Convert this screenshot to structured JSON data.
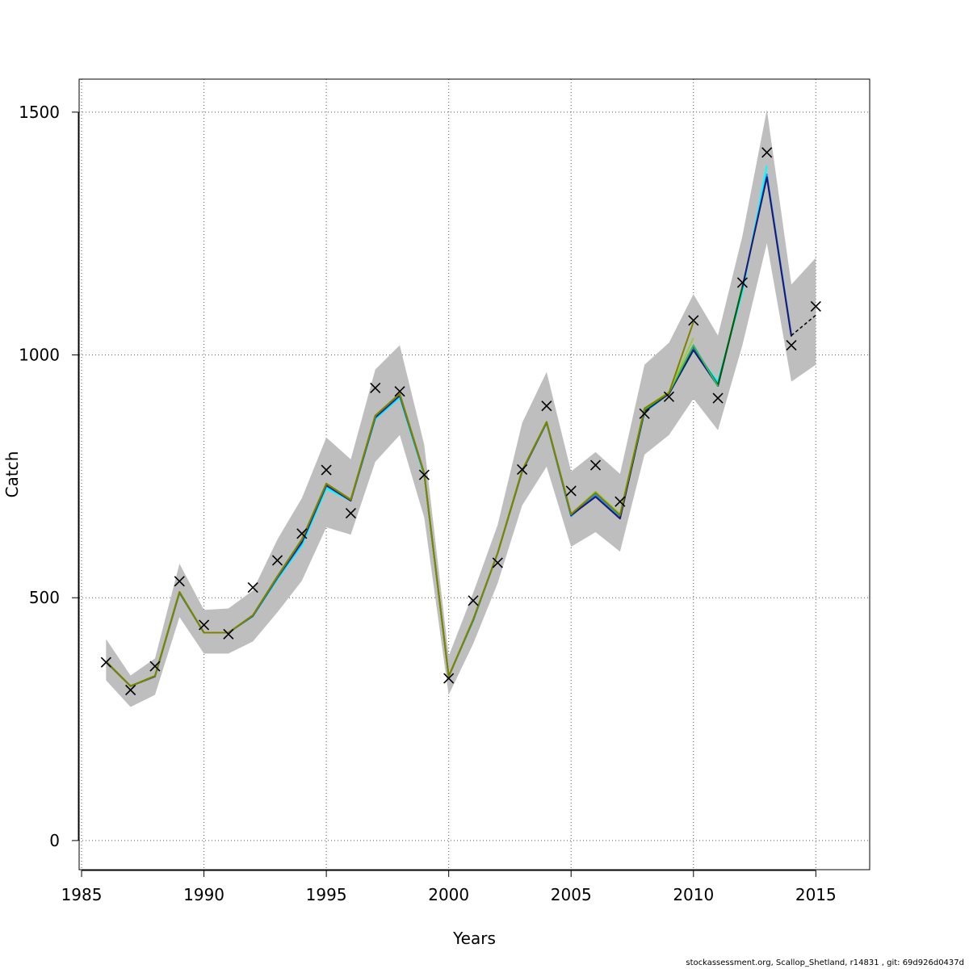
{
  "chart_data": {
    "type": "line",
    "xlabel": "Years",
    "ylabel": "Catch",
    "xlim": [
      1984.9,
      2017.2
    ],
    "ylim": [
      -60,
      1568
    ],
    "x_ticks": [
      1985,
      1990,
      1995,
      2000,
      2005,
      2010,
      2015
    ],
    "x_tick_labels": [
      "1985",
      "1990",
      "1995",
      "2000",
      "2005",
      "2010",
      "2015"
    ],
    "y_ticks": [
      0,
      500,
      1000,
      1500
    ],
    "y_tick_labels": [
      "0",
      "500",
      "1000",
      "1500"
    ],
    "grid": true,
    "colors": {
      "band": "#bebebe",
      "grid": "#555555",
      "observed_marker": "#000000"
    },
    "band": {
      "years": [
        1986,
        1987,
        1988,
        1989,
        1990,
        1991,
        1992,
        1993,
        1994,
        1995,
        1996,
        1997,
        1998,
        1999,
        2000,
        2001,
        2002,
        2003,
        2004,
        2005,
        2006,
        2007,
        2008,
        2009,
        2010,
        2011,
        2012,
        2013,
        2014,
        2015
      ],
      "lower": [
        330,
        275,
        300,
        460,
        385,
        385,
        410,
        470,
        535,
        645,
        630,
        780,
        835,
        665,
        300,
        405,
        530,
        690,
        770,
        605,
        635,
        595,
        795,
        835,
        910,
        845,
        1020,
        1230,
        945,
        980
      ],
      "upper": [
        415,
        340,
        375,
        570,
        475,
        478,
        515,
        620,
        705,
        830,
        785,
        970,
        1020,
        815,
        380,
        510,
        650,
        860,
        965,
        760,
        800,
        755,
        980,
        1025,
        1125,
        1040,
        1245,
        1505,
        1145,
        1200
      ]
    },
    "observed": {
      "marker": "x",
      "years": [
        1986,
        1987,
        1988,
        1989,
        1990,
        1991,
        1992,
        1993,
        1994,
        1995,
        1996,
        1997,
        1998,
        1999,
        2000,
        2001,
        2002,
        2003,
        2004,
        2005,
        2006,
        2007,
        2008,
        2009,
        2010,
        2011,
        2012,
        2013,
        2014,
        2015
      ],
      "values": [
        367,
        310,
        359,
        534,
        444,
        425,
        521,
        577,
        632,
        763,
        674,
        932,
        925,
        753,
        334,
        494,
        572,
        764,
        895,
        720,
        773,
        698,
        879,
        914,
        1071,
        911,
        1149,
        1417,
        1020,
        1100
      ]
    },
    "series": [
      {
        "color": "#00ffff",
        "years": [
          1986,
          1987,
          1988,
          1989,
          1990,
          1991,
          1992,
          1993,
          1994,
          1995,
          1996,
          1997,
          1998,
          1999,
          2000,
          2001,
          2002,
          2003,
          2004,
          2005,
          2006,
          2007,
          2008,
          2009,
          2010,
          2011,
          2012,
          2013
        ],
        "values": [
          368,
          318,
          338,
          510,
          428,
          428,
          462,
          538,
          608,
          725,
          700,
          868,
          912,
          752,
          338,
          452,
          592,
          760,
          860,
          668,
          714,
          666,
          882,
          920,
          1010,
          945,
          1130,
          1390
        ]
      },
      {
        "color": "#1e90ff",
        "years": [
          1986,
          1987,
          1988,
          1989,
          1990,
          1991,
          1992,
          1993,
          1994,
          1995,
          1996,
          1997,
          1998,
          1999,
          2000,
          2001,
          2002,
          2003,
          2004,
          2005,
          2006,
          2007,
          2008,
          2009,
          2010,
          2011,
          2012,
          2013,
          2014
        ],
        "values": [
          368,
          318,
          338,
          510,
          428,
          428,
          462,
          540,
          612,
          730,
          700,
          870,
          915,
          754,
          338,
          453,
          592,
          760,
          860,
          668,
          712,
          665,
          883,
          920,
          1012,
          940,
          1138,
          1372,
          1042
        ]
      },
      {
        "color": "#191970",
        "years": [
          1986,
          1987,
          1988,
          1989,
          1990,
          1991,
          1992,
          1993,
          1994,
          1995,
          1996,
          1997,
          1998,
          1999,
          2000,
          2001,
          2002,
          2003,
          2004,
          2005,
          2006,
          2007,
          2008,
          2009,
          2010,
          2011,
          2012,
          2013,
          2014
        ],
        "values": [
          368,
          318,
          338,
          511,
          428,
          428,
          463,
          542,
          615,
          732,
          700,
          872,
          917,
          755,
          338,
          454,
          592,
          760,
          861,
          670,
          708,
          663,
          884,
          920,
          1010,
          936,
          1140,
          1366,
          1038
        ]
      },
      {
        "color": "#000000",
        "dashed": true,
        "years": [
          2014,
          2015
        ],
        "values": [
          1040,
          1082
        ]
      },
      {
        "color": "#006400",
        "years": [
          1986,
          1987,
          1988,
          1989,
          1990,
          1991,
          1992,
          1993,
          1994,
          1995,
          1996,
          1997,
          1998,
          1999,
          2000,
          2001,
          2002,
          2003,
          2004,
          2005,
          2006,
          2007,
          2008,
          2009,
          2010,
          2011,
          2012
        ],
        "values": [
          369,
          318,
          339,
          512,
          428,
          428,
          464,
          544,
          620,
          735,
          702,
          875,
          920,
          756,
          338,
          455,
          592,
          762,
          862,
          672,
          718,
          670,
          886,
          922,
          1018,
          938,
          1140
        ]
      },
      {
        "color": "#3cb371",
        "years": [
          1986,
          1987,
          1988,
          1989,
          1990,
          1991,
          1992,
          1993,
          1994,
          1995,
          1996,
          1997,
          1998,
          1999,
          2000,
          2001,
          2002,
          2003,
          2004,
          2005,
          2006,
          2007,
          2008,
          2009,
          2010,
          2011
        ],
        "values": [
          369,
          318,
          339,
          512,
          428,
          428,
          464,
          544,
          620,
          735,
          702,
          875,
          920,
          756,
          338,
          455,
          592,
          762,
          862,
          672,
          718,
          672,
          888,
          923,
          1020,
          935
        ]
      },
      {
        "color": "#9acd32",
        "years": [
          1986,
          1987,
          1988,
          1989,
          1990,
          1991,
          1992,
          1993,
          1994,
          1995,
          1996,
          1997,
          1998,
          1999,
          2000,
          2001,
          2002,
          2003,
          2004,
          2005,
          2006,
          2007,
          2008,
          2009,
          2010
        ],
        "values": [
          369,
          318,
          339,
          512,
          428,
          428,
          464,
          544,
          620,
          735,
          702,
          875,
          920,
          756,
          338,
          455,
          592,
          762,
          862,
          672,
          718,
          672,
          890,
          924,
          1035
        ]
      },
      {
        "color": "#808000",
        "years": [
          1986,
          1987,
          1988,
          1989,
          1990,
          1991,
          1992,
          1993,
          1994,
          1995,
          1996,
          1997,
          1998,
          1999,
          2000,
          2001,
          2002,
          2003,
          2004,
          2005,
          2006,
          2007,
          2008,
          2009,
          2010
        ],
        "values": [
          369,
          318,
          339,
          512,
          428,
          428,
          464,
          544,
          620,
          735,
          702,
          875,
          920,
          756,
          338,
          455,
          592,
          762,
          862,
          672,
          716,
          670,
          890,
          922,
          1068
        ]
      }
    ]
  },
  "footer": {
    "text": "stockassessment.org, Scallop_Shetland, r14831 , git: 69d926d0437d"
  }
}
